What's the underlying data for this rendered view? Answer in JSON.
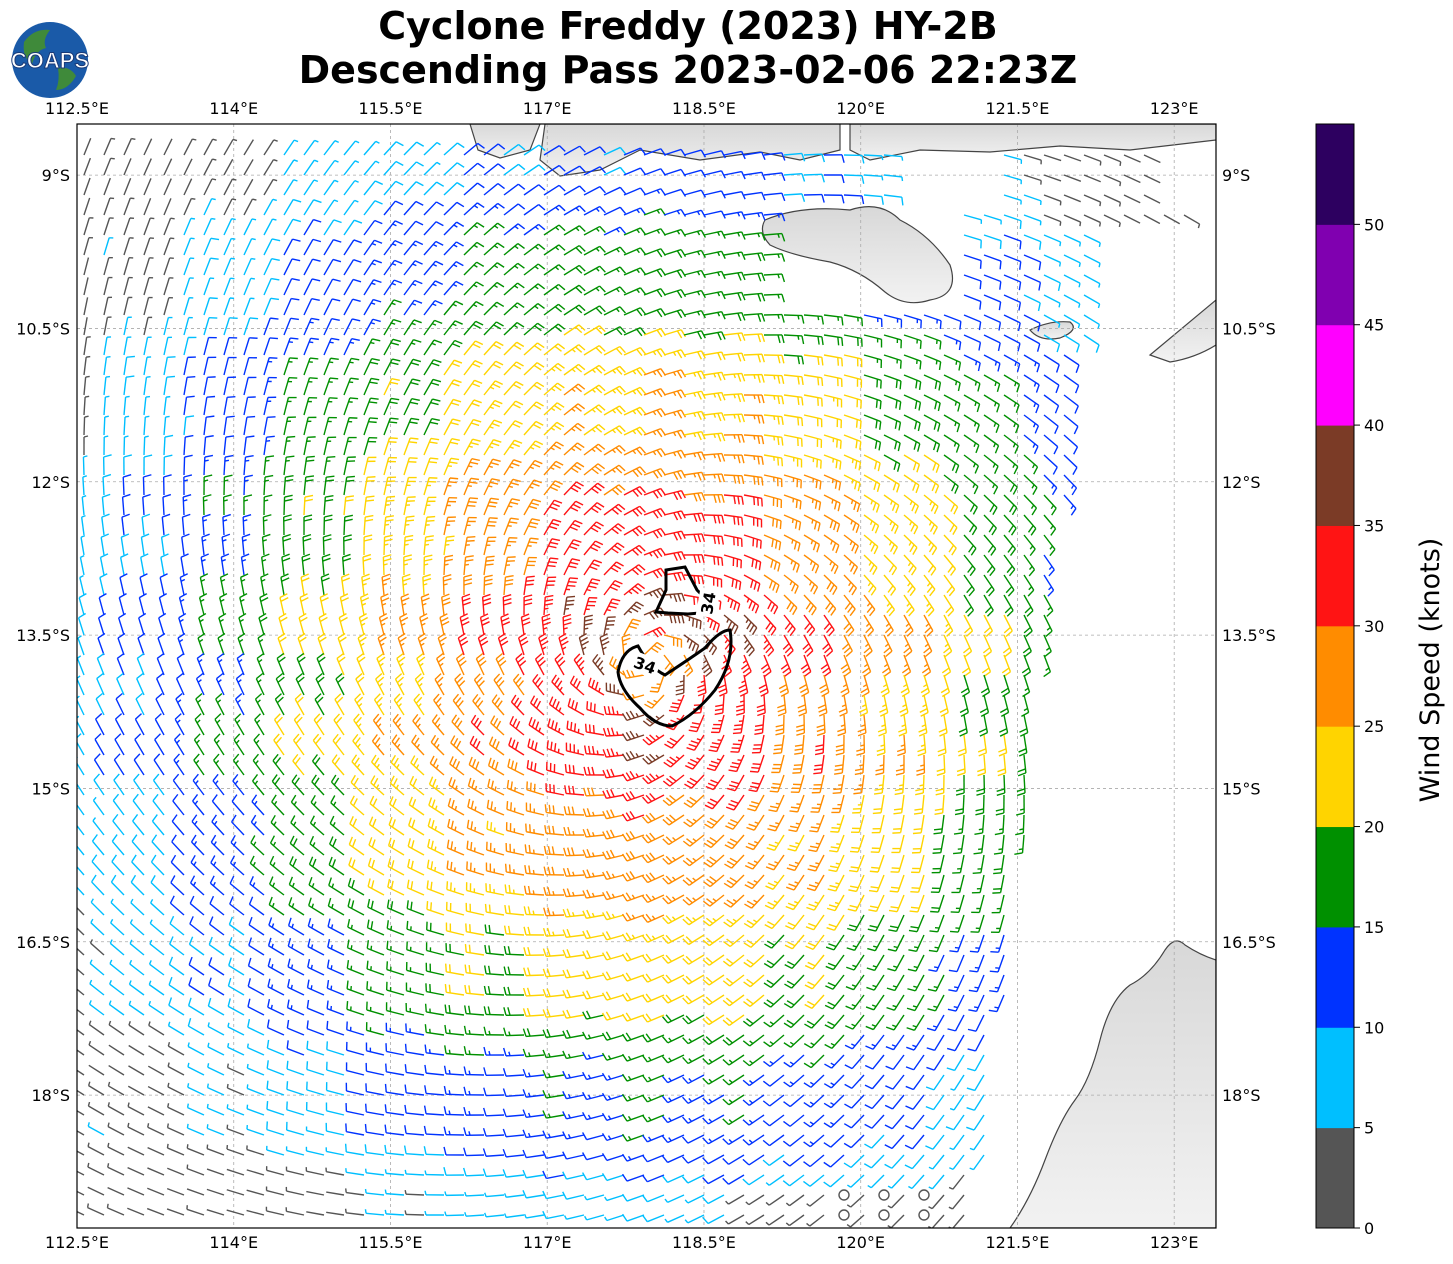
{
  "title": {
    "line1": "Cyclone Freddy (2023) HY-2B",
    "line2": "Descending Pass 2023-02-06 22:23Z"
  },
  "logo": {
    "text": "COAPS",
    "colors": {
      "ocean": "#1a5aa8",
      "land": "#3f8a3a"
    }
  },
  "map": {
    "lon_range": [
      112.5,
      123.4
    ],
    "lat_range": [
      -19.3,
      -8.5
    ],
    "lon_ticks": [
      "112.5°E",
      "114°E",
      "115.5°E",
      "117°E",
      "118.5°E",
      "120°E",
      "121.5°E",
      "123°E"
    ],
    "lon_tick_values": [
      112.5,
      114,
      115.5,
      117,
      118.5,
      120,
      121.5,
      123
    ],
    "lat_ticks": [
      "9°S",
      "10.5°S",
      "12°S",
      "13.5°S",
      "15°S",
      "16.5°S",
      "18°S"
    ],
    "lat_tick_values": [
      -9,
      -10.5,
      -12,
      -13.5,
      -15,
      -16.5,
      -18
    ],
    "gridlines": true,
    "land_color": "#e6e6e6",
    "coast_color": "#333333"
  },
  "storm": {
    "center_lon": 117.95,
    "center_lat": -13.75
  },
  "contour": {
    "label": "34",
    "label2": "34"
  },
  "colorbar": {
    "label": "Wind Speed (knots)",
    "bounds": [
      0,
      5,
      10,
      15,
      20,
      25,
      30,
      35,
      40,
      45,
      50
    ],
    "tick_labels": [
      "0",
      "5",
      "10",
      "15",
      "20",
      "25",
      "30",
      "35",
      "40",
      "45",
      "50"
    ],
    "colors": [
      "#555555",
      "#00bfff",
      "#0033ff",
      "#009000",
      "#ffd400",
      "#ff8c00",
      "#ff1414",
      "#7b3b26",
      "#ff00ff",
      "#8000b0",
      "#2d0060"
    ]
  }
}
